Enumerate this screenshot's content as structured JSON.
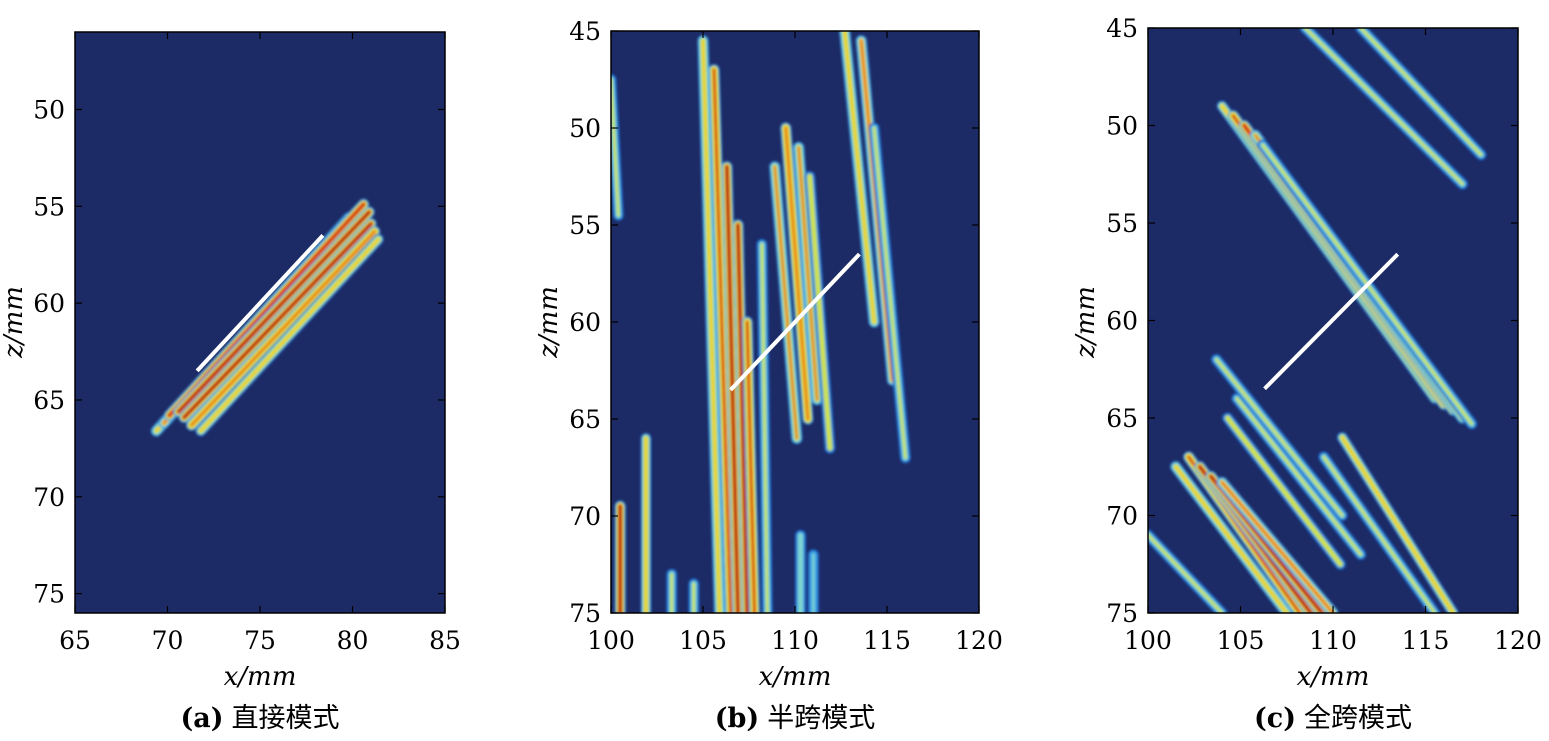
{
  "colors": {
    "background": "#1c2a66",
    "colormap": [
      "#1c2a66",
      "#1f5fc0",
      "#3aa0e6",
      "#7fd6d0",
      "#cfe24a",
      "#f0ce24",
      "#e8791c",
      "#d42418",
      "#b00f10"
    ],
    "line": "#ffffff"
  },
  "chart_data": [
    {
      "type": "heatmap",
      "panel_tag": "(a)",
      "caption": "直接模式",
      "xlabel": "x/mm",
      "ylabel": "z/mm",
      "xlim": [
        65,
        85
      ],
      "ylim": [
        46,
        76
      ],
      "y_reversed": true,
      "xticks": [
        "65",
        "70",
        "75",
        "80",
        "85"
      ],
      "yticks": [
        "50",
        "55",
        "60",
        "65",
        "70",
        "75"
      ],
      "xtick_values": [
        65,
        70,
        75,
        80,
        85
      ],
      "ytick_values": [
        50,
        55,
        60,
        65,
        70,
        75
      ],
      "stripes": [
        {
          "x1": 69.4,
          "z1": 66.6,
          "x2": 79.8,
          "z2": 55.6,
          "intensity": 0.65
        },
        {
          "x1": 69.8,
          "z1": 66.2,
          "x2": 80.3,
          "z2": 55.2,
          "intensity": 0.78
        },
        {
          "x1": 70.1,
          "z1": 65.8,
          "x2": 80.6,
          "z2": 54.9,
          "intensity": 0.92
        },
        {
          "x1": 70.6,
          "z1": 65.6,
          "x2": 80.9,
          "z2": 55.3,
          "intensity": 1.0
        },
        {
          "x1": 70.9,
          "z1": 65.9,
          "x2": 81.0,
          "z2": 55.9,
          "intensity": 0.95
        },
        {
          "x1": 71.3,
          "z1": 66.3,
          "x2": 81.2,
          "z2": 56.3,
          "intensity": 0.8
        },
        {
          "x1": 71.8,
          "z1": 66.6,
          "x2": 81.4,
          "z2": 56.7,
          "intensity": 0.6
        }
      ],
      "white_line": {
        "x1": 71.6,
        "z1": 63.5,
        "x2": 78.4,
        "z2": 56.5
      }
    },
    {
      "type": "heatmap",
      "panel_tag": "(b)",
      "caption": "半跨模式",
      "xlabel": "x/mm",
      "ylabel": "z/mm",
      "xlim": [
        100,
        120
      ],
      "ylim": [
        45,
        75
      ],
      "y_reversed": true,
      "xticks": [
        "100",
        "105",
        "110",
        "115",
        "120"
      ],
      "yticks": [
        "45",
        "50",
        "55",
        "60",
        "65",
        "70",
        "75"
      ],
      "xtick_values": [
        100,
        105,
        110,
        115,
        120
      ],
      "ytick_values": [
        45,
        50,
        55,
        60,
        65,
        70,
        75
      ],
      "stripes": [
        {
          "x1": 100.0,
          "z1": 47.5,
          "x2": 100.4,
          "z2": 54.5,
          "intensity": 0.45
        },
        {
          "x1": 100.5,
          "z1": 69.5,
          "x2": 100.5,
          "z2": 75.0,
          "intensity": 0.95
        },
        {
          "x1": 101.9,
          "z1": 66.0,
          "x2": 101.9,
          "z2": 75.0,
          "intensity": 0.6
        },
        {
          "x1": 103.3,
          "z1": 73.0,
          "x2": 103.3,
          "z2": 75.0,
          "intensity": 0.5
        },
        {
          "x1": 104.5,
          "z1": 73.5,
          "x2": 104.5,
          "z2": 75.0,
          "intensity": 0.45
        },
        {
          "x1": 105.0,
          "z1": 45.5,
          "x2": 105.9,
          "z2": 75.0,
          "intensity": 0.65
        },
        {
          "x1": 105.6,
          "z1": 47.0,
          "x2": 106.5,
          "z2": 75.0,
          "intensity": 0.85
        },
        {
          "x1": 106.3,
          "z1": 52.0,
          "x2": 106.9,
          "z2": 75.0,
          "intensity": 1.0
        },
        {
          "x1": 106.9,
          "z1": 55.0,
          "x2": 107.4,
          "z2": 75.0,
          "intensity": 1.0
        },
        {
          "x1": 107.4,
          "z1": 60.0,
          "x2": 107.8,
          "z2": 75.0,
          "intensity": 0.85
        },
        {
          "x1": 108.2,
          "z1": 56.0,
          "x2": 108.5,
          "z2": 75.0,
          "intensity": 0.5
        },
        {
          "x1": 108.9,
          "z1": 52.0,
          "x2": 110.1,
          "z2": 66.0,
          "intensity": 0.7
        },
        {
          "x1": 109.5,
          "z1": 50.0,
          "x2": 110.7,
          "z2": 65.0,
          "intensity": 0.8
        },
        {
          "x1": 110.2,
          "z1": 51.0,
          "x2": 111.2,
          "z2": 64.0,
          "intensity": 0.7
        },
        {
          "x1": 110.8,
          "z1": 52.5,
          "x2": 111.9,
          "z2": 66.5,
          "intensity": 0.55
        },
        {
          "x1": 110.3,
          "z1": 71.0,
          "x2": 110.3,
          "z2": 75.0,
          "intensity": 0.4
        },
        {
          "x1": 111.0,
          "z1": 72.0,
          "x2": 111.0,
          "z2": 75.0,
          "intensity": 0.35
        },
        {
          "x1": 112.7,
          "z1": 45.0,
          "x2": 114.3,
          "z2": 60.0,
          "intensity": 0.65
        },
        {
          "x1": 113.6,
          "z1": 45.5,
          "x2": 115.3,
          "z2": 63.0,
          "intensity": 0.75
        },
        {
          "x1": 114.3,
          "z1": 50.0,
          "x2": 116.0,
          "z2": 67.0,
          "intensity": 0.5
        }
      ],
      "white_line": {
        "x1": 106.5,
        "z1": 63.5,
        "x2": 113.5,
        "z2": 56.5
      }
    },
    {
      "type": "heatmap",
      "panel_tag": "(c)",
      "caption": "全跨模式",
      "xlabel": "x/mm",
      "ylabel": "z/mm",
      "xlim": [
        100,
        120
      ],
      "ylim": [
        45,
        75
      ],
      "y_reversed": true,
      "xticks": [
        "100",
        "105",
        "110",
        "115",
        "120"
      ],
      "yticks": [
        "45",
        "50",
        "55",
        "60",
        "65",
        "70",
        "75"
      ],
      "xtick_values": [
        100,
        105,
        110,
        115,
        120
      ],
      "ytick_values": [
        45,
        50,
        55,
        60,
        65,
        70,
        75
      ],
      "stripes": [
        {
          "x1": 108.5,
          "z1": 45.0,
          "x2": 117.0,
          "z2": 53.0,
          "intensity": 0.5
        },
        {
          "x1": 111.5,
          "z1": 45.0,
          "x2": 118.0,
          "z2": 51.5,
          "intensity": 0.45
        },
        {
          "x1": 104.0,
          "z1": 49.0,
          "x2": 115.5,
          "z2": 64.0,
          "intensity": 0.6
        },
        {
          "x1": 104.6,
          "z1": 49.5,
          "x2": 116.0,
          "z2": 64.3,
          "intensity": 0.85
        },
        {
          "x1": 105.2,
          "z1": 50.0,
          "x2": 116.5,
          "z2": 64.6,
          "intensity": 0.9
        },
        {
          "x1": 105.8,
          "z1": 50.5,
          "x2": 117.0,
          "z2": 65.0,
          "intensity": 0.7
        },
        {
          "x1": 106.2,
          "z1": 51.0,
          "x2": 117.5,
          "z2": 65.3,
          "intensity": 0.5
        },
        {
          "x1": 100.0,
          "z1": 71.0,
          "x2": 104.0,
          "z2": 75.0,
          "intensity": 0.5
        },
        {
          "x1": 101.5,
          "z1": 67.5,
          "x2": 107.5,
          "z2": 75.0,
          "intensity": 0.65
        },
        {
          "x1": 102.2,
          "z1": 67.0,
          "x2": 108.2,
          "z2": 75.0,
          "intensity": 0.85
        },
        {
          "x1": 102.8,
          "z1": 67.5,
          "x2": 108.8,
          "z2": 75.0,
          "intensity": 1.0
        },
        {
          "x1": 103.4,
          "z1": 68.0,
          "x2": 109.4,
          "z2": 75.0,
          "intensity": 0.95
        },
        {
          "x1": 104.0,
          "z1": 68.3,
          "x2": 110.0,
          "z2": 75.0,
          "intensity": 0.75
        },
        {
          "x1": 104.3,
          "z1": 65.0,
          "x2": 110.4,
          "z2": 72.5,
          "intensity": 0.55
        },
        {
          "x1": 104.8,
          "z1": 64.0,
          "x2": 111.5,
          "z2": 72.0,
          "intensity": 0.5
        },
        {
          "x1": 103.7,
          "z1": 62.0,
          "x2": 110.5,
          "z2": 70.0,
          "intensity": 0.45
        },
        {
          "x1": 110.5,
          "z1": 66.0,
          "x2": 116.5,
          "z2": 75.0,
          "intensity": 0.6
        },
        {
          "x1": 109.5,
          "z1": 67.0,
          "x2": 115.5,
          "z2": 75.0,
          "intensity": 0.5
        }
      ],
      "white_line": {
        "x1": 106.3,
        "z1": 63.5,
        "x2": 113.5,
        "z2": 56.6
      }
    }
  ]
}
